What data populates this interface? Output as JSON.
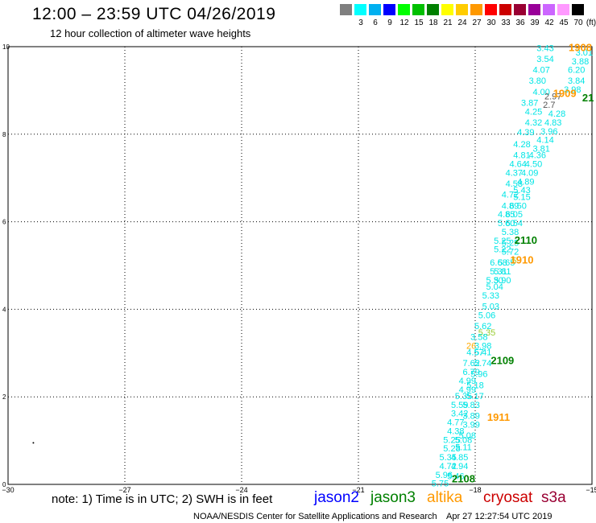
{
  "header": {
    "title": "12:00 – 23:59 UTC 04/26/2019",
    "subtitle": "12 hour collection of altimeter wave heights"
  },
  "scale": {
    "unit_label": "(ft)",
    "colors": [
      "#7f7f7f",
      "#00ffff",
      "#00b0f0",
      "#0000ff",
      "#00ff00",
      "#00c000",
      "#008000",
      "#ffff00",
      "#ffcc00",
      "#ff9900",
      "#ff0000",
      "#cc0000",
      "#990033",
      "#990099",
      "#cc66ff",
      "#ff99ff",
      "#000000"
    ],
    "labels": [
      "",
      "3",
      "6",
      "9",
      "12",
      "15",
      "18",
      "21",
      "24",
      "27",
      "30",
      "33",
      "36",
      "39",
      "42",
      "45",
      "70"
    ]
  },
  "map": {
    "lon_ticks": [
      "−30",
      "−27",
      "−24",
      "−21",
      "−18",
      "−15"
    ],
    "lat_ticks": [
      "0",
      "2",
      "4",
      "6",
      "8",
      "10"
    ]
  },
  "track_labels": [
    {
      "text": "1908",
      "lat": 9.9,
      "lon": -15.3,
      "color": "#ff9900"
    },
    {
      "text": "1909",
      "lat": 8.85,
      "lon": -15.7,
      "color": "#ff9900"
    },
    {
      "text": "21",
      "lat": 8.75,
      "lon": -15.1,
      "color": "#008000"
    },
    {
      "text": "2110",
      "lat": 5.5,
      "lon": -16.7,
      "color": "#008000"
    },
    {
      "text": "1910",
      "lat": 5.05,
      "lon": -16.8,
      "color": "#ff9900"
    },
    {
      "text": "2109",
      "lat": 2.75,
      "lon": -17.3,
      "color": "#008000"
    },
    {
      "text": "1911",
      "lat": 1.45,
      "lon": -17.4,
      "color": "#ff9900"
    },
    {
      "text": "2108",
      "lat": 0.05,
      "lon": -18.3,
      "color": "#008000"
    }
  ],
  "observations": [
    {
      "v": "3.43",
      "lat": 9.9,
      "lon": -16.2,
      "color": "#00e5e5"
    },
    {
      "v": "3.01",
      "lat": 9.8,
      "lon": -15.2,
      "color": "#00e5e5"
    },
    {
      "v": "3.54",
      "lat": 9.65,
      "lon": -16.2,
      "color": "#00e5e5"
    },
    {
      "v": "3.88",
      "lat": 9.6,
      "lon": -15.3,
      "color": "#00e5e5"
    },
    {
      "v": "4.07",
      "lat": 9.4,
      "lon": -16.3,
      "color": "#00e5e5"
    },
    {
      "v": "6.20",
      "lat": 9.4,
      "lon": -15.4,
      "color": "#00e5e5"
    },
    {
      "v": "3.80",
      "lat": 9.15,
      "lon": -16.4,
      "color": "#00e5e5"
    },
    {
      "v": "3.84",
      "lat": 9.15,
      "lon": -15.4,
      "color": "#00e5e5"
    },
    {
      "v": "4.00",
      "lat": 8.9,
      "lon": -16.3,
      "color": "#00e5e5"
    },
    {
      "v": "3.98",
      "lat": 8.95,
      "lon": -15.5,
      "color": "#00e5e5"
    },
    {
      "v": "2.97",
      "lat": 8.8,
      "lon": -16.0,
      "color": "#555555"
    },
    {
      "v": "3.87",
      "lat": 8.65,
      "lon": -16.6,
      "color": "#00e5e5"
    },
    {
      "v": "2.7",
      "lat": 8.6,
      "lon": -16.1,
      "color": "#555555"
    },
    {
      "v": "4.25",
      "lat": 8.45,
      "lon": -16.5,
      "color": "#00e5e5"
    },
    {
      "v": "4.28",
      "lat": 8.4,
      "lon": -15.9,
      "color": "#00e5e5"
    },
    {
      "v": "4.32",
      "lat": 8.2,
      "lon": -16.5,
      "color": "#00e5e5"
    },
    {
      "v": "4.83",
      "lat": 8.2,
      "lon": -16.0,
      "color": "#00e5e5"
    },
    {
      "v": "4.39",
      "lat": 7.98,
      "lon": -16.7,
      "color": "#00e5e5"
    },
    {
      "v": "3.96",
      "lat": 8.0,
      "lon": -16.1,
      "color": "#00e5e5"
    },
    {
      "v": "4.14",
      "lat": 7.8,
      "lon": -16.2,
      "color": "#00e5e5"
    },
    {
      "v": "4.28",
      "lat": 7.7,
      "lon": -16.8,
      "color": "#00e5e5"
    },
    {
      "v": "3.81",
      "lat": 7.6,
      "lon": -16.3,
      "color": "#00e5e5"
    },
    {
      "v": "4.81",
      "lat": 7.45,
      "lon": -16.8,
      "color": "#00e5e5"
    },
    {
      "v": "4.36",
      "lat": 7.45,
      "lon": -16.4,
      "color": "#00e5e5"
    },
    {
      "v": "4.64",
      "lat": 7.25,
      "lon": -16.9,
      "color": "#00e5e5"
    },
    {
      "v": "4.50",
      "lat": 7.25,
      "lon": -16.5,
      "color": "#00e5e5"
    },
    {
      "v": "4.37",
      "lat": 7.05,
      "lon": -17.0,
      "color": "#00e5e5"
    },
    {
      "v": "4.09",
      "lat": 7.05,
      "lon": -16.6,
      "color": "#00e5e5"
    },
    {
      "v": "4.89",
      "lat": 6.85,
      "lon": -16.7,
      "color": "#00e5e5"
    },
    {
      "v": "4.58",
      "lat": 6.8,
      "lon": -17.0,
      "color": "#00e5e5"
    },
    {
      "v": "5.43",
      "lat": 6.65,
      "lon": -16.8,
      "color": "#00e5e5"
    },
    {
      "v": "4.72",
      "lat": 6.55,
      "lon": -17.1,
      "color": "#00e5e5"
    },
    {
      "v": "5.15",
      "lat": 6.5,
      "lon": -16.8,
      "color": "#00e5e5"
    },
    {
      "v": "4.89",
      "lat": 6.3,
      "lon": -17.1,
      "color": "#00e5e5"
    },
    {
      "v": "6.50",
      "lat": 6.3,
      "lon": -16.9,
      "color": "#00e5e5"
    },
    {
      "v": "4.85",
      "lat": 6.1,
      "lon": -17.2,
      "color": "#00e5e5"
    },
    {
      "v": "6.05",
      "lat": 6.1,
      "lon": -17.0,
      "color": "#00e5e5"
    },
    {
      "v": "5.60",
      "lat": 5.9,
      "lon": -17.2,
      "color": "#00e5e5"
    },
    {
      "v": "6.54",
      "lat": 5.9,
      "lon": -17.0,
      "color": "#00e5e5"
    },
    {
      "v": "5.38",
      "lat": 5.7,
      "lon": -17.1,
      "color": "#00e5e5"
    },
    {
      "v": "5.25",
      "lat": 5.5,
      "lon": -17.3,
      "color": "#00e5e5"
    },
    {
      "v": "5.25",
      "lat": 5.45,
      "lon": -17.1,
      "color": "#00e5e5"
    },
    {
      "v": "5.22",
      "lat": 5.3,
      "lon": -17.3,
      "color": "#00e5e5"
    },
    {
      "v": "5.72",
      "lat": 5.25,
      "lon": -17.1,
      "color": "#00e5e5"
    },
    {
      "v": "6.68",
      "lat": 5.0,
      "lon": -17.4,
      "color": "#00e5e5"
    },
    {
      "v": "5.65",
      "lat": 5.0,
      "lon": -17.2,
      "color": "#00e5e5"
    },
    {
      "v": "5",
      "lat": 5.05,
      "lon": -17.0,
      "color": "#99cc33"
    },
    {
      "v": "5.31",
      "lat": 4.8,
      "lon": -17.4,
      "color": "#00e5e5"
    },
    {
      "v": "5.81",
      "lat": 4.8,
      "lon": -17.3,
      "color": "#00e5e5"
    },
    {
      "v": "5.30",
      "lat": 4.6,
      "lon": -17.5,
      "color": "#00e5e5"
    },
    {
      "v": "5.90",
      "lat": 4.6,
      "lon": -17.3,
      "color": "#00e5e5"
    },
    {
      "v": "5.04",
      "lat": 4.45,
      "lon": -17.5,
      "color": "#00e5e5"
    },
    {
      "v": "5.33",
      "lat": 4.25,
      "lon": -17.6,
      "color": "#00e5e5"
    },
    {
      "v": "5.03",
      "lat": 4.0,
      "lon": -17.6,
      "color": "#00e5e5"
    },
    {
      "v": "5.06",
      "lat": 3.8,
      "lon": -17.7,
      "color": "#00e5e5"
    },
    {
      "v": "5.62",
      "lat": 3.55,
      "lon": -17.8,
      "color": "#00e5e5"
    },
    {
      "v": "5.35",
      "lat": 3.4,
      "lon": -17.7,
      "color": "#99cc33"
    },
    {
      "v": "3.58",
      "lat": 3.3,
      "lon": -17.9,
      "color": "#00e5e5"
    },
    {
      "v": "26",
      "lat": 3.1,
      "lon": -18.1,
      "color": "#ffaa00"
    },
    {
      "v": "3.98",
      "lat": 3.1,
      "lon": -17.8,
      "color": "#00e5e5"
    },
    {
      "v": "4.57",
      "lat": 2.95,
      "lon": -18.0,
      "color": "#00e5e5"
    },
    {
      "v": "5.41",
      "lat": 2.95,
      "lon": -17.8,
      "color": "#00e5e5"
    },
    {
      "v": "7.62",
      "lat": 2.7,
      "lon": -18.1,
      "color": "#00e5e5"
    },
    {
      "v": "5.74",
      "lat": 2.7,
      "lon": -17.8,
      "color": "#00e5e5"
    },
    {
      "v": "6.79",
      "lat": 2.5,
      "lon": -18.1,
      "color": "#00e5e5"
    },
    {
      "v": "5.96",
      "lat": 2.45,
      "lon": -17.9,
      "color": "#00e5e5"
    },
    {
      "v": "4.99",
      "lat": 2.3,
      "lon": -18.2,
      "color": "#00e5e5"
    },
    {
      "v": "5.18",
      "lat": 2.2,
      "lon": -18.0,
      "color": "#00e5e5"
    },
    {
      "v": "4.99",
      "lat": 2.1,
      "lon": -18.2,
      "color": "#00e5e5"
    },
    {
      "v": "5.35",
      "lat": 1.95,
      "lon": -18.3,
      "color": "#00e5e5"
    },
    {
      "v": "5.17",
      "lat": 1.95,
      "lon": -18.0,
      "color": "#00e5e5"
    },
    {
      "v": "5.59",
      "lat": 1.75,
      "lon": -18.4,
      "color": "#00e5e5"
    },
    {
      "v": "5.83",
      "lat": 1.75,
      "lon": -18.1,
      "color": "#00e5e5"
    },
    {
      "v": "3.42",
      "lat": 1.55,
      "lon": -18.4,
      "color": "#00e5e5"
    },
    {
      "v": "3.89",
      "lat": 1.5,
      "lon": -18.1,
      "color": "#00e5e5"
    },
    {
      "v": "4.77",
      "lat": 1.35,
      "lon": -18.5,
      "color": "#00e5e5"
    },
    {
      "v": "3.99",
      "lat": 1.3,
      "lon": -18.1,
      "color": "#00e5e5"
    },
    {
      "v": "4.38",
      "lat": 1.15,
      "lon": -18.5,
      "color": "#00e5e5"
    },
    {
      "v": "5.08",
      "lat": 1.05,
      "lon": -18.2,
      "color": "#00e5e5"
    },
    {
      "v": "5.25",
      "lat": 0.95,
      "lon": -18.6,
      "color": "#00e5e5"
    },
    {
      "v": "5.08",
      "lat": 0.95,
      "lon": -18.3,
      "color": "#00e5e5"
    },
    {
      "v": "5.28",
      "lat": 0.75,
      "lon": -18.6,
      "color": "#00e5e5"
    },
    {
      "v": "5.11",
      "lat": 0.78,
      "lon": -18.3,
      "color": "#00e5e5"
    },
    {
      "v": "5.35",
      "lat": 0.55,
      "lon": -18.7,
      "color": "#00e5e5"
    },
    {
      "v": "4.85",
      "lat": 0.55,
      "lon": -18.4,
      "color": "#00e5e5"
    },
    {
      "v": "4.72",
      "lat": 0.35,
      "lon": -18.7,
      "color": "#00e5e5"
    },
    {
      "v": "4.94",
      "lat": 0.35,
      "lon": -18.4,
      "color": "#00e5e5"
    },
    {
      "v": "5.96",
      "lat": 0.15,
      "lon": -18.8,
      "color": "#00e5e5"
    },
    {
      "v": "5.46",
      "lat": 0.12,
      "lon": -18.5,
      "color": "#00e5e5"
    },
    {
      "v": "5.75",
      "lat": -0.05,
      "lon": -18.9,
      "color": "#00e5e5"
    }
  ],
  "footer": {
    "note": "note: 1) Time is in UTC; 2) SWH is in feet",
    "satellites": [
      {
        "name": "jason2",
        "color": "#0000ff"
      },
      {
        "name": "jason3",
        "color": "#008000"
      },
      {
        "name": "altika",
        "color": "#ff9900"
      },
      {
        "name": "cryosat",
        "color": "#cc0000"
      },
      {
        "name": "s3a",
        "color": "#990033"
      }
    ],
    "credit": "NOAA/NESDIS Center for Satellite Applications and Research",
    "timestamp": "Apr 27 12:27:54 UTC 2019"
  }
}
